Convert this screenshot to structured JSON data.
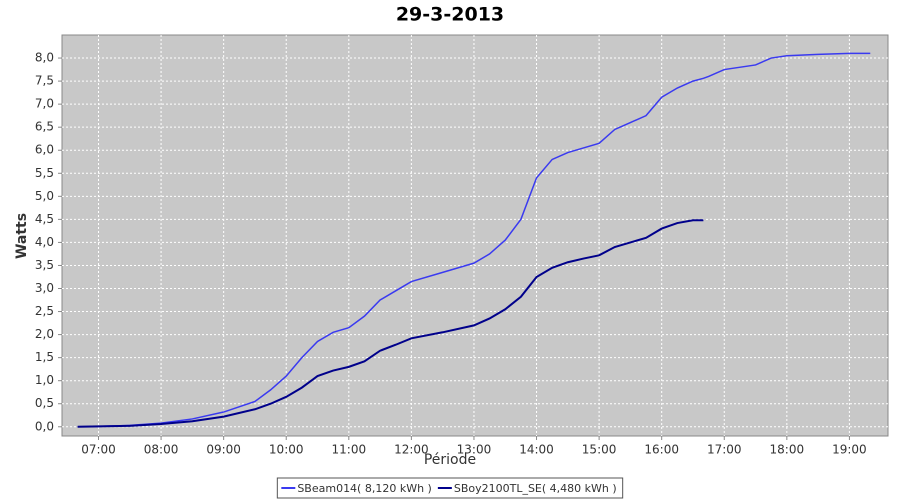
{
  "chart_data": {
    "type": "line",
    "title": "29-3-2013",
    "xlabel": "Période",
    "ylabel": "Watts",
    "x": [
      "06:40",
      "07:00",
      "07:30",
      "08:00",
      "08:30",
      "09:00",
      "09:30",
      "09:45",
      "10:00",
      "10:15",
      "10:30",
      "10:45",
      "11:00",
      "11:15",
      "11:30",
      "11:45",
      "12:00",
      "12:30",
      "13:00",
      "13:15",
      "13:30",
      "13:45",
      "14:00",
      "14:15",
      "14:30",
      "14:45",
      "15:00",
      "15:15",
      "15:30",
      "15:45",
      "16:00",
      "16:15",
      "16:30",
      "16:40",
      "16:45",
      "17:00",
      "17:30",
      "17:45",
      "18:00",
      "18:30",
      "19:00",
      "19:20"
    ],
    "series": [
      {
        "name": "SBeam014( 8,120 kWh )",
        "color": "#3a3af0",
        "values": [
          0,
          0.01,
          0.03,
          0.08,
          0.17,
          0.32,
          0.55,
          0.8,
          1.1,
          1.5,
          1.85,
          2.05,
          2.15,
          2.4,
          2.75,
          2.95,
          3.15,
          3.35,
          3.55,
          3.75,
          4.05,
          4.5,
          5.4,
          5.8,
          5.95,
          6.05,
          6.15,
          6.45,
          6.6,
          6.75,
          7.15,
          7.35,
          7.5,
          7.56,
          7.6,
          7.75,
          7.85,
          8.0,
          8.05,
          8.08,
          8.1,
          8.1
        ]
      },
      {
        "name": "SBoy2100TL_SE( 4,480 kWh )",
        "color": "#00008b",
        "values": [
          0,
          0.01,
          0.02,
          0.06,
          0.12,
          0.22,
          0.38,
          0.5,
          0.65,
          0.85,
          1.1,
          1.22,
          1.3,
          1.42,
          1.65,
          1.78,
          1.92,
          2.05,
          2.2,
          2.35,
          2.55,
          2.82,
          3.25,
          3.45,
          3.57,
          3.65,
          3.72,
          3.9,
          4.0,
          4.1,
          4.3,
          4.42,
          4.48,
          4.48,
          null,
          null,
          null,
          null,
          null,
          null,
          null,
          null
        ]
      }
    ],
    "xlim": [
      "06:25",
      "19:37"
    ],
    "xticks": [
      "07:00",
      "08:00",
      "09:00",
      "10:00",
      "11:00",
      "12:00",
      "13:00",
      "14:00",
      "15:00",
      "16:00",
      "17:00",
      "18:00",
      "19:00"
    ],
    "ylim": [
      -0.2,
      8.5
    ],
    "yticks": [
      {
        "value": 0,
        "label": "0,0"
      },
      {
        "value": 0.5,
        "label": "0,5"
      },
      {
        "value": 1,
        "label": "1,0"
      },
      {
        "value": 1.5,
        "label": "1,5"
      },
      {
        "value": 2,
        "label": "2,0"
      },
      {
        "value": 2.5,
        "label": "2,5"
      },
      {
        "value": 3,
        "label": "3,0"
      },
      {
        "value": 3.5,
        "label": "3,5"
      },
      {
        "value": 4,
        "label": "4,0"
      },
      {
        "value": 4.5,
        "label": "4,5"
      },
      {
        "value": 5,
        "label": "5,0"
      },
      {
        "value": 5.5,
        "label": "5,5"
      },
      {
        "value": 6,
        "label": "6,0"
      },
      {
        "value": 6.5,
        "label": "6,5"
      },
      {
        "value": 7,
        "label": "7,0"
      },
      {
        "value": 7.5,
        "label": "7,5"
      },
      {
        "value": 8,
        "label": "8,0"
      }
    ],
    "grid": true,
    "legend": "bottom"
  }
}
